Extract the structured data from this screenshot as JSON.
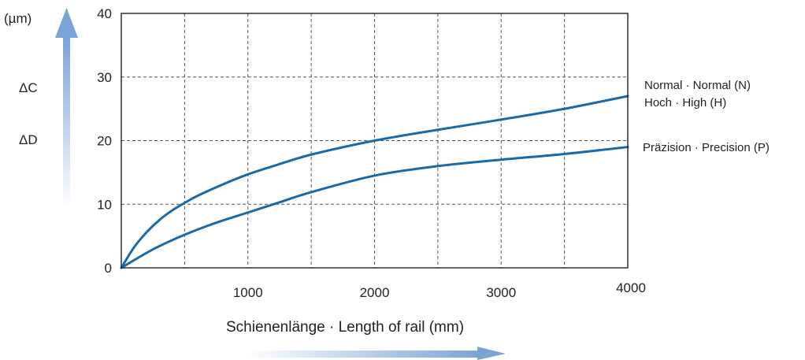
{
  "chart_data": {
    "type": "line",
    "title": "",
    "xlabel": "Schienenlänge · Length of rail (mm)",
    "ylabel_unit": "(µm)",
    "ylabel_lines": [
      "ΔC",
      "ΔD"
    ],
    "xlim": [
      0,
      4000
    ],
    "ylim": [
      0,
      40
    ],
    "x_ticks": [
      1000,
      2000,
      3000,
      4000
    ],
    "y_ticks": [
      0,
      10,
      20,
      30,
      40
    ],
    "grid": true,
    "grid_x": [
      500,
      1000,
      1500,
      2000,
      2500,
      3000,
      3500
    ],
    "grid_y": [
      10,
      20,
      30
    ],
    "series": [
      {
        "name": "Normal · Normal (N)",
        "name2": "Hoch · High (H)",
        "color": "#1a6aaa",
        "x": [
          0,
          100,
          200,
          300,
          400,
          500,
          600,
          800,
          1000,
          1200,
          1500,
          2000,
          2500,
          3000,
          3500,
          4000
        ],
        "y": [
          0,
          3.2,
          5.6,
          7.5,
          9.0,
          10.2,
          11.3,
          13.1,
          14.7,
          16.0,
          17.8,
          20.0,
          21.7,
          23.3,
          25.0,
          27.0
        ]
      },
      {
        "name": "Präzision · Precision (P)",
        "color": "#1a6aaa",
        "x": [
          0,
          250,
          500,
          750,
          1000,
          1250,
          1500,
          2000,
          2500,
          3000,
          3500,
          4000
        ],
        "y": [
          0,
          2.9,
          5.2,
          7.1,
          8.7,
          10.3,
          11.9,
          14.5,
          16.0,
          17.0,
          17.9,
          19.0
        ]
      }
    ]
  },
  "colors": {
    "curve": "#1a6aaa",
    "grid": "#555555",
    "arrow_start": "#e8f0f8",
    "arrow_end": "#7aa3d6"
  }
}
